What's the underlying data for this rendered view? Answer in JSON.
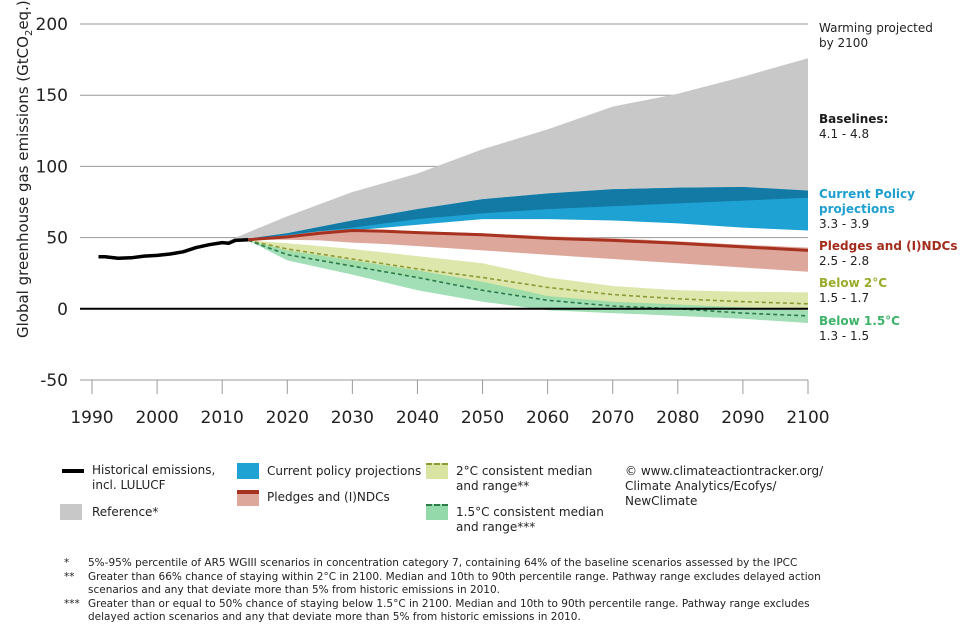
{
  "chart_data": {
    "type": "area",
    "ylabel_parts": [
      "Global greenhouse gas emissions (GtCO",
      "2",
      "eq.)"
    ],
    "y_ticks": [
      "200",
      "150",
      "100",
      "50",
      "0",
      "-50"
    ],
    "y_tick_values": [
      200,
      150,
      100,
      50,
      0,
      -50
    ],
    "x_ticks": [
      "1990",
      "2000",
      "2010",
      "2020",
      "2030",
      "2040",
      "2050",
      "2060",
      "2070",
      "2080",
      "2090",
      "2100"
    ],
    "x_tick_values": [
      1990,
      2000,
      2010,
      2020,
      2030,
      2040,
      2050,
      2060,
      2070,
      2080,
      2090,
      2100
    ],
    "xlim": [
      1990,
      2100
    ],
    "ylim": [
      -50,
      200
    ],
    "colors": {
      "historical": "#000000",
      "reference": "#c8c8c8",
      "current_policy": "#1ea2d4",
      "current_policy_dark": "#137aa6",
      "pledges": "#a83220",
      "pledges_band": "#dea79c",
      "two_c_band": "#d9e3a2",
      "two_c_line": "#8c9a36",
      "one5_band": "#93d9a9",
      "one5_line": "#2c7a4a",
      "zero_line": "#000000"
    },
    "historical": {
      "x": [
        1991,
        1992,
        1994,
        1996,
        1998,
        2000,
        2002,
        2004,
        2006,
        2008,
        2010,
        2011,
        2012,
        2014
      ],
      "y": [
        36.5,
        36.5,
        35.5,
        35.8,
        37,
        37.5,
        38.5,
        40,
        43,
        45,
        46.5,
        46,
        48,
        48.5
      ]
    },
    "reference": {
      "x": [
        2010,
        2020,
        2030,
        2040,
        2050,
        2060,
        2070,
        2080,
        2090,
        2100
      ],
      "upper": [
        46,
        65,
        82,
        95,
        112,
        126,
        142,
        151,
        163,
        176
      ],
      "lower": [
        46,
        52,
        58,
        64,
        70,
        75,
        79,
        82,
        83,
        82
      ]
    },
    "current_policy": {
      "x": [
        2012,
        2020,
        2030,
        2040,
        2050,
        2060,
        2070,
        2080,
        2090,
        2100
      ],
      "upper": [
        48,
        53,
        62,
        70,
        77,
        81,
        84,
        85,
        85.5,
        83
      ],
      "dark_lower": [
        48,
        52,
        57,
        63,
        67,
        70,
        72,
        74,
        76,
        78
      ],
      "lower": [
        48,
        51,
        55,
        59,
        63,
        63,
        62,
        60,
        57,
        55
      ]
    },
    "pledges": {
      "x": [
        2014,
        2020,
        2025,
        2030,
        2035,
        2040,
        2050,
        2060,
        2070,
        2080,
        2090,
        2100
      ],
      "median": [
        48.5,
        50.5,
        53,
        55,
        54.5,
        53.5,
        52,
        49.5,
        48,
        46,
        43.5,
        41
      ],
      "upper": [
        48.5,
        51.5,
        54.5,
        56,
        55.5,
        54.5,
        53,
        51,
        49.5,
        47.5,
        45,
        43
      ],
      "lower": [
        48.5,
        48.5,
        48,
        46.5,
        45.5,
        44,
        41,
        38,
        35,
        32,
        29,
        26
      ]
    },
    "two_c": {
      "x": [
        2014,
        2020,
        2030,
        2040,
        2050,
        2060,
        2070,
        2080,
        2090,
        2100
      ],
      "median": [
        48,
        42,
        35,
        28,
        22,
        15,
        10,
        7,
        5,
        3.5
      ],
      "upper": [
        48,
        46,
        42,
        37,
        32,
        22,
        16,
        13,
        12,
        11.5
      ],
      "lower": [
        48,
        39,
        30,
        22,
        14,
        7,
        3,
        1,
        0,
        -1
      ]
    },
    "one5": {
      "x": [
        2014,
        2020,
        2030,
        2040,
        2050,
        2060,
        2070,
        2080,
        2090,
        2100
      ],
      "median": [
        48,
        38,
        30,
        22,
        13,
        6,
        2,
        0,
        -3,
        -5
      ],
      "upper": [
        48,
        41,
        34,
        27,
        19,
        9,
        5,
        3,
        1,
        -1
      ],
      "lower": [
        48,
        34,
        24,
        13,
        5,
        -1,
        -3,
        -5,
        -7,
        -10
      ]
    }
  },
  "side_labels": {
    "warming_title_1": "Warming projected",
    "warming_title_2": "by 2100",
    "baselines_title": "Baselines:",
    "baselines_range": "4.1 - 4.8",
    "current_title": "Current Policy projections",
    "current_range": "3.3 - 3.9",
    "pledges_title": "Pledges and (I)NDCs",
    "pledges_range": "2.5 - 2.8",
    "below2_title": "Below 2°C",
    "below2_range": "1.5 - 1.7",
    "below15_title": "Below 1.5°C",
    "below15_range": "1.3 - 1.5"
  },
  "legend": {
    "historical_1": "Historical emissions,",
    "historical_2": "incl. LULUCF",
    "reference": "Reference*",
    "current": "Current policy projections",
    "pledges": "Pledges and (I)NDCs",
    "two_c_1": "2°C consistent median",
    "two_c_2": "and range**",
    "one5_1": "1.5°C consistent median",
    "one5_2": "and range***",
    "credit_1": "© www.climateactiontracker.org/",
    "credit_2": "Climate Analytics/Ecofys/",
    "credit_3": "NewClimate"
  },
  "notes": [
    {
      "mark": "*",
      "text": "5%-95% percentile of AR5 WGIII scenarios in concentration category 7, containing 64% of the baseline scenarios assessed by the IPCC"
    },
    {
      "mark": "**",
      "text": "Greater than 66% chance of staying within 2°C in 2100. Median and 10th to 90th percentile range. Pathway range excludes delayed action scenarios and any that deviate more than 5% from historic emissions in 2010."
    },
    {
      "mark": "***",
      "text": "Greater than or equal to 50% chance of staying below 1.5°C in 2100. Median and 10th to 90th percentile range. Pathway range excludes delayed action scenarios and any that deviate more than 5% from historic emissions in 2010."
    }
  ]
}
